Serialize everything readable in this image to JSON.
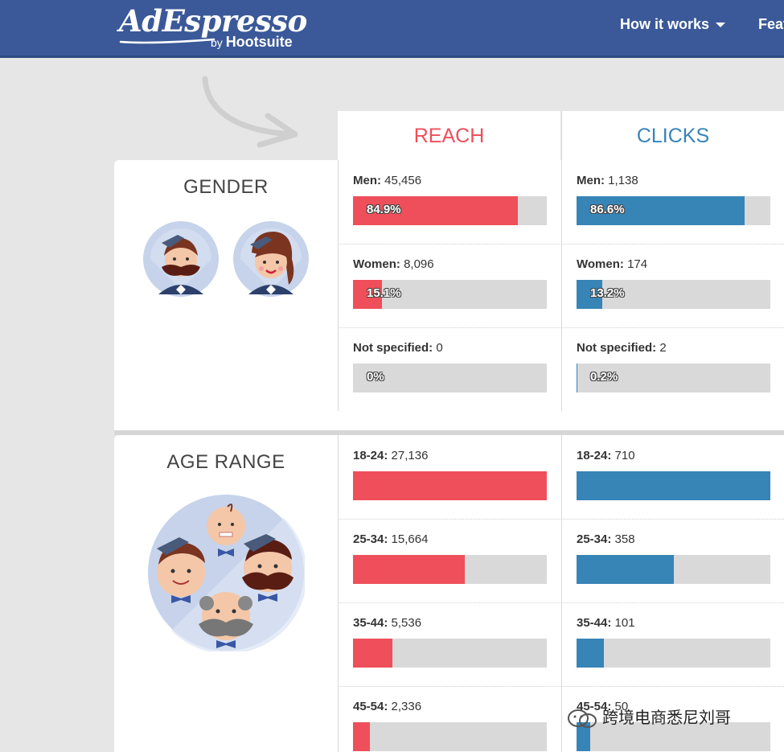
{
  "header": {
    "logo_text": "AdEspresso",
    "logo_by": "by",
    "logo_brand": "Hootsuite",
    "nav": [
      {
        "label": "How it works"
      },
      {
        "label": "Feat"
      }
    ]
  },
  "columns": {
    "reach": "REACH",
    "clicks": "CLICKS"
  },
  "gender": {
    "title": "GENDER",
    "reach": [
      {
        "label": "Men:",
        "value": "45,456",
        "pct_text": "84.9%",
        "fill": 0.849
      },
      {
        "label": "Women:",
        "value": "8,096",
        "pct_text": "15.1%",
        "fill": 0.151
      },
      {
        "label": "Not specified:",
        "value": "0",
        "pct_text": "0%",
        "fill": 0
      }
    ],
    "clicks": [
      {
        "label": "Men:",
        "value": "1,138",
        "pct_text": "86.6%",
        "fill": 0.866
      },
      {
        "label": "Women:",
        "value": "174",
        "pct_text": "13.2%",
        "fill": 0.132
      },
      {
        "label": "Not specified:",
        "value": "2",
        "pct_text": "0.2%",
        "fill": 0.002
      }
    ]
  },
  "age": {
    "title": "AGE RANGE",
    "reach": [
      {
        "label": "18-24:",
        "value": "27,136",
        "pct_text": "",
        "fill": 1.0
      },
      {
        "label": "25-34:",
        "value": "15,664",
        "pct_text": "",
        "fill": 0.577
      },
      {
        "label": "35-44:",
        "value": "5,536",
        "pct_text": "",
        "fill": 0.204
      },
      {
        "label": "45-54:",
        "value": "2,336",
        "pct_text": "",
        "fill": 0.086
      }
    ],
    "clicks": [
      {
        "label": "18-24:",
        "value": "710",
        "pct_text": "",
        "fill": 1.0
      },
      {
        "label": "25-34:",
        "value": "358",
        "pct_text": "",
        "fill": 0.504
      },
      {
        "label": "35-44:",
        "value": "101",
        "pct_text": "",
        "fill": 0.142
      },
      {
        "label": "45-54:",
        "value": "50",
        "pct_text": "",
        "fill": 0.07
      }
    ]
  },
  "watermark": "跨境电商悉尼刘哥",
  "colors": {
    "header": "#3b5998",
    "reach": "#ef4f5a",
    "clicks": "#3784b7",
    "bar_track": "#d9d9d9"
  },
  "icons": [
    "caret-down-icon",
    "arrow-icon",
    "man-avatar-icon",
    "woman-avatar-icon",
    "age-group-icon",
    "wechat-icon"
  ]
}
